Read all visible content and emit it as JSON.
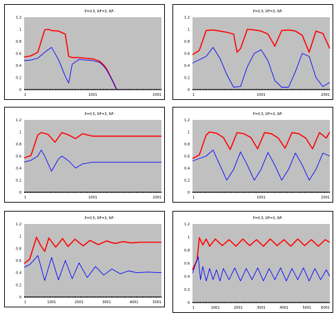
{
  "colors": {
    "plot_bg": "#c0c0c0",
    "series_1": "#ff0000",
    "series_2": "#0000ff",
    "baseline": "#000000"
  },
  "chart_data": [
    {
      "type": "line",
      "title": "P=0.5,   RF=3,   NF-",
      "grid": false,
      "xlim": [
        1,
        2001
      ],
      "x_ticks": [
        "1",
        "1001",
        "2001"
      ],
      "ylim": [
        0,
        1.2
      ],
      "y_ticks": [
        "0",
        "0.2",
        "0.4",
        "0.6",
        "0.8",
        "1",
        "1.2"
      ],
      "series": [
        {
          "color": "#ff0000",
          "x": [
            1,
            100,
            200,
            300,
            350,
            400,
            500,
            600,
            650,
            700,
            800,
            900,
            1000,
            1100,
            1150,
            1200,
            1300,
            1350
          ],
          "values": [
            0.54,
            0.56,
            0.62,
            0.99,
            1.0,
            0.98,
            0.97,
            0.92,
            0.55,
            0.53,
            0.53,
            0.52,
            0.51,
            0.47,
            0.42,
            0.35,
            0.12,
            0.0
          ]
        },
        {
          "color": "#0000ff",
          "x": [
            1,
            100,
            200,
            300,
            400,
            500,
            600,
            650,
            700,
            800,
            900,
            1000,
            1100,
            1150,
            1200,
            1300,
            1350
          ],
          "values": [
            0.48,
            0.49,
            0.52,
            0.62,
            0.7,
            0.5,
            0.22,
            0.11,
            0.42,
            0.5,
            0.49,
            0.48,
            0.45,
            0.4,
            0.33,
            0.12,
            0.0
          ]
        }
      ]
    },
    {
      "type": "line",
      "title": "P=0.5,   RF=3,   NF-",
      "grid": false,
      "xlim": [
        1,
        2001
      ],
      "x_ticks": [
        "1",
        "1001",
        "2001"
      ],
      "ylim": [
        0,
        1.2
      ],
      "y_ticks": [
        "0",
        "0.2",
        "0.4",
        "0.6",
        "0.8",
        "1",
        "1.2"
      ],
      "series": [
        {
          "color": "#ff0000",
          "x": [
            1,
            100,
            200,
            300,
            400,
            500,
            600,
            650,
            700,
            800,
            900,
            1000,
            1100,
            1200,
            1300,
            1400,
            1500,
            1600,
            1700,
            1800,
            1900,
            2001
          ],
          "values": [
            0.58,
            0.65,
            0.98,
            0.99,
            0.97,
            0.95,
            0.92,
            0.62,
            0.68,
            1.0,
            0.99,
            0.97,
            0.92,
            0.72,
            0.98,
            0.99,
            0.97,
            0.9,
            0.62,
            0.97,
            0.93,
            0.68
          ]
        },
        {
          "color": "#0000ff",
          "x": [
            1,
            200,
            300,
            400,
            500,
            600,
            700,
            800,
            900,
            1000,
            1100,
            1200,
            1300,
            1400,
            1500,
            1600,
            1700,
            1800,
            1900,
            2001
          ],
          "values": [
            0.44,
            0.55,
            0.7,
            0.52,
            0.25,
            0.04,
            0.05,
            0.38,
            0.6,
            0.66,
            0.48,
            0.15,
            0.04,
            0.04,
            0.3,
            0.6,
            0.55,
            0.2,
            0.05,
            0.12
          ]
        }
      ]
    },
    {
      "type": "line",
      "title": "P=0.5,   RF=3,   NF-",
      "grid": false,
      "xlim": [
        1,
        2001
      ],
      "x_ticks": [
        "1",
        "1001",
        "2001"
      ],
      "ylim": [
        0,
        1.2
      ],
      "y_ticks": [
        "0",
        "0.2",
        "0.4",
        "0.6",
        "0.8",
        "1",
        "1.2"
      ],
      "series": [
        {
          "color": "#ff0000",
          "x": [
            1,
            100,
            200,
            250,
            350,
            450,
            550,
            650,
            750,
            850,
            1000,
            1200,
            1500,
            2001
          ],
          "values": [
            0.57,
            0.61,
            0.95,
            0.99,
            0.96,
            0.83,
            0.99,
            0.95,
            0.89,
            0.97,
            0.93,
            0.93,
            0.93,
            0.93
          ]
        },
        {
          "color": "#0000ff",
          "x": [
            1,
            100,
            200,
            250,
            300,
            400,
            500,
            550,
            650,
            750,
            850,
            1000,
            1200,
            1500,
            2001
          ],
          "values": [
            0.5,
            0.53,
            0.6,
            0.7,
            0.6,
            0.35,
            0.55,
            0.6,
            0.52,
            0.4,
            0.47,
            0.5,
            0.5,
            0.5,
            0.5
          ]
        }
      ]
    },
    {
      "type": "line",
      "title": "P=0.5,   RF=3,   NF-",
      "grid": false,
      "xlim": [
        1,
        2001
      ],
      "x_ticks": [
        "1",
        "1001",
        "2001"
      ],
      "ylim": [
        0,
        1.2
      ],
      "y_ticks": [
        "0",
        "0.2",
        "0.4",
        "0.6",
        "0.8",
        "1",
        "1.2"
      ],
      "series": [
        {
          "color": "#ff0000",
          "x": [
            1,
            100,
            200,
            250,
            350,
            450,
            550,
            650,
            750,
            850,
            950,
            1050,
            1150,
            1250,
            1350,
            1450,
            1550,
            1650,
            1750,
            1850,
            1950,
            2001
          ],
          "values": [
            0.56,
            0.62,
            0.95,
            1.0,
            0.98,
            0.91,
            0.71,
            0.99,
            0.97,
            0.91,
            0.72,
            0.99,
            0.97,
            0.9,
            0.73,
            0.99,
            0.97,
            0.9,
            0.72,
            0.99,
            0.9,
            1.0
          ]
        },
        {
          "color": "#0000ff",
          "x": [
            1,
            200,
            300,
            400,
            500,
            600,
            700,
            800,
            900,
            1000,
            1100,
            1200,
            1300,
            1400,
            1500,
            1600,
            1700,
            1800,
            1900,
            2001
          ],
          "values": [
            0.52,
            0.6,
            0.7,
            0.45,
            0.2,
            0.38,
            0.67,
            0.45,
            0.2,
            0.38,
            0.66,
            0.45,
            0.2,
            0.38,
            0.65,
            0.45,
            0.2,
            0.38,
            0.65,
            0.6
          ]
        }
      ]
    },
    {
      "type": "line",
      "title": "P=0.5,   RF=3,   NF-",
      "grid": false,
      "xlim": [
        1,
        5001
      ],
      "x_ticks": [
        "1",
        "1001",
        "2001",
        "3001",
        "4001",
        "5001"
      ],
      "ylim": [
        0,
        1.2
      ],
      "y_ticks": [
        "0",
        "0.2",
        "0.4",
        "0.6",
        "0.8",
        "1",
        "1.2"
      ],
      "series": [
        {
          "color": "#ff0000",
          "x": [
            1,
            200,
            450,
            600,
            750,
            900,
            1150,
            1400,
            1600,
            1850,
            2150,
            2400,
            2700,
            3000,
            3300,
            3600,
            3900,
            4200,
            4600,
            5001
          ],
          "values": [
            0.55,
            0.62,
            0.98,
            0.85,
            0.75,
            0.97,
            0.82,
            0.96,
            0.83,
            0.95,
            0.84,
            0.93,
            0.86,
            0.92,
            0.88,
            0.91,
            0.89,
            0.9,
            0.9,
            0.9
          ]
        },
        {
          "color": "#0000ff",
          "x": [
            1,
            200,
            500,
            750,
            1000,
            1250,
            1500,
            1750,
            2000,
            2300,
            2600,
            2900,
            3200,
            3500,
            3800,
            4100,
            4500,
            5001
          ],
          "values": [
            0.49,
            0.53,
            0.68,
            0.27,
            0.65,
            0.28,
            0.6,
            0.3,
            0.56,
            0.32,
            0.5,
            0.36,
            0.46,
            0.38,
            0.43,
            0.4,
            0.41,
            0.4
          ]
        }
      ]
    },
    {
      "type": "line",
      "title": "P=0.5,   RF=3,   NF-",
      "grid": false,
      "xlim": [
        1,
        6001
      ],
      "x_ticks": [
        "1",
        "1001",
        "2001",
        "3001",
        "4001",
        "5001",
        "6001"
      ],
      "ylim": [
        0,
        1.2
      ],
      "y_ticks": [
        "0",
        "0.2",
        "0.4",
        "0.6",
        "0.8",
        "1",
        "1.2"
      ],
      "series": [
        {
          "color": "#ff0000",
          "x": [
            1,
            200,
            300,
            450,
            600,
            750,
            1000,
            1300,
            1600,
            1900,
            2200,
            2500,
            2800,
            3100,
            3400,
            3700,
            4000,
            4300,
            4600,
            4900,
            5200,
            5500,
            5800,
            6001
          ],
          "values": [
            0.5,
            0.65,
            0.99,
            0.88,
            0.97,
            0.86,
            0.97,
            0.87,
            0.96,
            0.86,
            0.97,
            0.87,
            0.96,
            0.86,
            0.97,
            0.87,
            0.96,
            0.86,
            0.97,
            0.87,
            0.96,
            0.86,
            0.96,
            0.92
          ]
        },
        {
          "color": "#0000ff",
          "x": [
            1,
            150,
            250,
            350,
            450,
            600,
            750,
            900,
            1050,
            1200,
            1350,
            1600,
            1850,
            2100,
            2350,
            2600,
            2850,
            3100,
            3350,
            3600,
            3850,
            4100,
            4350,
            4600,
            4850,
            5100,
            5350,
            5600,
            5850,
            6001
          ],
          "values": [
            0.45,
            0.6,
            0.7,
            0.35,
            0.55,
            0.33,
            0.52,
            0.35,
            0.5,
            0.33,
            0.52,
            0.35,
            0.53,
            0.33,
            0.52,
            0.35,
            0.53,
            0.33,
            0.52,
            0.35,
            0.53,
            0.33,
            0.52,
            0.35,
            0.53,
            0.33,
            0.52,
            0.35,
            0.5,
            0.4
          ]
        }
      ]
    }
  ]
}
